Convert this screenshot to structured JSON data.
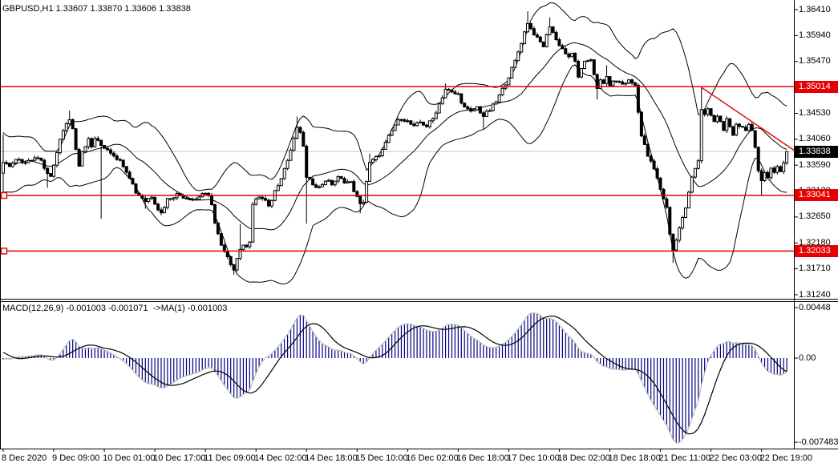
{
  "window": {
    "title": "GBPUSD,H1 1.33607 1.33870 1.33606 1.33838"
  },
  "chart_data": {
    "type": "candlestick",
    "symbol": "GBPUSD",
    "timeframe": "H1",
    "quote": {
      "open": "1.33607",
      "high": "1.33870",
      "low": "1.33606",
      "close": "1.33838"
    },
    "current_price": 1.33838,
    "current_price_label": "1.33838",
    "ylim": [
      1.3124,
      1.3641
    ],
    "price_axis_labels": [
      {
        "text": "1.36410",
        "value": 1.3641
      },
      {
        "text": "1.35940",
        "value": 1.3594
      },
      {
        "text": "1.35470",
        "value": 1.3547
      },
      {
        "text": "1.34530",
        "value": 1.3453
      },
      {
        "text": "1.34060",
        "value": 1.3406
      },
      {
        "text": "1.33590",
        "value": 1.3359
      },
      {
        "text": "1.33120",
        "value": 1.3312
      },
      {
        "text": "1.32650",
        "value": 1.3265
      },
      {
        "text": "1.32180",
        "value": 1.3218
      },
      {
        "text": "1.31710",
        "value": 1.3171
      },
      {
        "text": "1.31240",
        "value": 1.3124
      }
    ],
    "time_axis": {
      "bars_per_label": 16,
      "labels": [
        "8 Dec 2020",
        "9 Dec 09:00",
        "10 Dec 01:00",
        "10 Dec 17:00",
        "11 Dec 09:00",
        "14 Dec 02:00",
        "14 Dec 18:00",
        "15 Dec 10:00",
        "16 Dec 02:00",
        "16 Dec 18:00",
        "17 Dec 10:00",
        "18 Dec 02:00",
        "18 Dec 18:00",
        "21 Dec 11:00",
        "22 Dec 03:00",
        "22 Dec 19:00"
      ]
    },
    "bars_total": 249,
    "close_keyframes": [
      [
        0,
        1.3365
      ],
      [
        2,
        1.336
      ],
      [
        4,
        1.337
      ],
      [
        6,
        1.3362
      ],
      [
        8,
        1.3368
      ],
      [
        10,
        1.3372
      ],
      [
        12,
        1.3365
      ],
      [
        14,
        1.3342
      ],
      [
        15,
        1.3338
      ],
      [
        16,
        1.3356
      ],
      [
        18,
        1.3408
      ],
      [
        20,
        1.3432
      ],
      [
        21,
        1.3443
      ],
      [
        22,
        1.3425
      ],
      [
        23,
        1.339
      ],
      [
        24,
        1.336
      ],
      [
        25,
        1.3385
      ],
      [
        27,
        1.3405
      ],
      [
        28,
        1.3392
      ],
      [
        29,
        1.3408
      ],
      [
        31,
        1.3395
      ],
      [
        33,
        1.3388
      ],
      [
        35,
        1.3378
      ],
      [
        38,
        1.336
      ],
      [
        40,
        1.3338
      ],
      [
        42,
        1.331
      ],
      [
        44,
        1.33
      ],
      [
        45,
        1.3294
      ],
      [
        47,
        1.3303
      ],
      [
        49,
        1.328
      ],
      [
        50,
        1.3272
      ],
      [
        52,
        1.3297
      ],
      [
        55,
        1.3306
      ],
      [
        58,
        1.33
      ],
      [
        61,
        1.3297
      ],
      [
        63,
        1.3308
      ],
      [
        65,
        1.3302
      ],
      [
        66,
        1.329
      ],
      [
        67,
        1.3254
      ],
      [
        69,
        1.3212
      ],
      [
        71,
        1.319
      ],
      [
        73,
        1.3172
      ],
      [
        74,
        1.319
      ],
      [
        75,
        1.3208
      ],
      [
        77,
        1.3214
      ],
      [
        78,
        1.3222
      ],
      [
        79,
        1.3288
      ],
      [
        81,
        1.3302
      ],
      [
        83,
        1.3294
      ],
      [
        84,
        1.3282
      ],
      [
        86,
        1.3312
      ],
      [
        88,
        1.3338
      ],
      [
        90,
        1.3368
      ],
      [
        92,
        1.3405
      ],
      [
        93,
        1.3428
      ],
      [
        94,
        1.3415
      ],
      [
        95,
        1.3395
      ],
      [
        96,
        1.3335
      ],
      [
        98,
        1.3326
      ],
      [
        100,
        1.3318
      ],
      [
        102,
        1.3332
      ],
      [
        104,
        1.3325
      ],
      [
        106,
        1.3336
      ],
      [
        108,
        1.333
      ],
      [
        110,
        1.3327
      ],
      [
        112,
        1.33
      ],
      [
        113,
        1.3287
      ],
      [
        114,
        1.3294
      ],
      [
        115,
        1.333
      ],
      [
        116,
        1.3362
      ],
      [
        118,
        1.3372
      ],
      [
        120,
        1.3386
      ],
      [
        122,
        1.341
      ],
      [
        124,
        1.3432
      ],
      [
        126,
        1.3445
      ],
      [
        128,
        1.3438
      ],
      [
        130,
        1.3428
      ],
      [
        132,
        1.3437
      ],
      [
        134,
        1.343
      ],
      [
        136,
        1.3443
      ],
      [
        138,
        1.347
      ],
      [
        140,
        1.3497
      ],
      [
        142,
        1.349
      ],
      [
        144,
        1.3487
      ],
      [
        146,
        1.3463
      ],
      [
        148,
        1.3455
      ],
      [
        150,
        1.3464
      ],
      [
        152,
        1.3448
      ],
      [
        154,
        1.3459
      ],
      [
        156,
        1.3474
      ],
      [
        158,
        1.3496
      ],
      [
        160,
        1.352
      ],
      [
        162,
        1.3547
      ],
      [
        164,
        1.3582
      ],
      [
        166,
        1.3618
      ],
      [
        167,
        1.3606
      ],
      [
        168,
        1.3598
      ],
      [
        169,
        1.3588
      ],
      [
        171,
        1.3575
      ],
      [
        173,
        1.3612
      ],
      [
        174,
        1.36
      ],
      [
        175,
        1.3586
      ],
      [
        177,
        1.357
      ],
      [
        179,
        1.3553
      ],
      [
        180,
        1.3561
      ],
      [
        181,
        1.3549
      ],
      [
        182,
        1.3516
      ],
      [
        183,
        1.3531
      ],
      [
        184,
        1.3548
      ],
      [
        186,
        1.3552
      ],
      [
        187,
        1.3521
      ],
      [
        188,
        1.3496
      ],
      [
        189,
        1.3513
      ],
      [
        190,
        1.3509
      ],
      [
        191,
        1.3516
      ],
      [
        192,
        1.3506
      ],
      [
        194,
        1.3512
      ],
      [
        196,
        1.3506
      ],
      [
        198,
        1.3512
      ],
      [
        200,
        1.3504
      ],
      [
        202,
        1.3412
      ],
      [
        204,
        1.3376
      ],
      [
        206,
        1.3352
      ],
      [
        208,
        1.3316
      ],
      [
        210,
        1.3282
      ],
      [
        211,
        1.3236
      ],
      [
        212,
        1.3206
      ],
      [
        213,
        1.3222
      ],
      [
        214,
        1.3246
      ],
      [
        216,
        1.328
      ],
      [
        218,
        1.334
      ],
      [
        220,
        1.3368
      ],
      [
        221,
        1.3458
      ],
      [
        222,
        1.3448
      ],
      [
        223,
        1.3461
      ],
      [
        225,
        1.3436
      ],
      [
        226,
        1.3449
      ],
      [
        228,
        1.3425
      ],
      [
        229,
        1.344
      ],
      [
        231,
        1.3411
      ],
      [
        232,
        1.3434
      ],
      [
        234,
        1.3429
      ],
      [
        235,
        1.3421
      ],
      [
        236,
        1.3436
      ],
      [
        237,
        1.3421
      ],
      [
        238,
        1.3388
      ],
      [
        239,
        1.3346
      ],
      [
        240,
        1.3331
      ],
      [
        241,
        1.3349
      ],
      [
        242,
        1.3338
      ],
      [
        243,
        1.3353
      ],
      [
        244,
        1.3345
      ],
      [
        245,
        1.3357
      ],
      [
        246,
        1.3349
      ],
      [
        247,
        1.3363
      ],
      [
        248,
        1.3384
      ]
    ],
    "wick_overrides": [
      {
        "i": 0,
        "high": 1.3415,
        "low": 1.3298
      },
      {
        "i": 14,
        "low": 1.3318
      },
      {
        "i": 21,
        "high": 1.3458
      },
      {
        "i": 31,
        "low": 1.3262
      },
      {
        "i": 45,
        "low": 1.328
      },
      {
        "i": 50,
        "low": 1.3268
      },
      {
        "i": 73,
        "low": 1.316
      },
      {
        "i": 75,
        "high": 1.3252
      },
      {
        "i": 93,
        "high": 1.3447
      },
      {
        "i": 96,
        "low": 1.3253
      },
      {
        "i": 113,
        "low": 1.3272
      },
      {
        "i": 116,
        "high": 1.338
      },
      {
        "i": 140,
        "high": 1.3507
      },
      {
        "i": 152,
        "low": 1.3424
      },
      {
        "i": 166,
        "high": 1.3638
      },
      {
        "i": 173,
        "high": 1.3627
      },
      {
        "i": 188,
        "low": 1.3478
      },
      {
        "i": 191,
        "high": 1.354
      },
      {
        "i": 212,
        "low": 1.3182
      },
      {
        "i": 221,
        "high": 1.35,
        "low": 1.3362
      },
      {
        "i": 240,
        "low": 1.3303
      }
    ],
    "noise": {
      "body": 0.00035,
      "wick": 0.00045
    },
    "indicators": {
      "bollinger": {
        "period": 20,
        "deviation": 2
      },
      "macd": {
        "label": "MACD(12,26,9) -0.001003 -0.001071  ->MA(1) -0.001003",
        "fast": 12,
        "slow": 26,
        "signal": 9,
        "values_shown": [
          "-0.001003",
          "-0.001071",
          "-0.001003"
        ],
        "axis_labels": [
          {
            "text": "0.00448",
            "value": 0.00448
          },
          {
            "text": "0.00",
            "value": 0
          },
          {
            "text": "-0.007483",
            "value": -0.007483
          }
        ]
      }
    },
    "levels": [
      {
        "label": "1.35014",
        "price": 1.35014,
        "handle": false
      },
      {
        "label": "1.33041",
        "price": 1.33041,
        "handle": true
      },
      {
        "label": "1.32033",
        "price": 1.32033,
        "handle": true
      }
    ],
    "trendline": {
      "bar1": 221,
      "price1": 1.35,
      "bar2": 250.8,
      "price2": 1.3384
    },
    "colors": {
      "background": "#FFFFFF",
      "candle_up": "#FFFFFF",
      "candle_down": "#000000",
      "candle_outline": "#000000",
      "bollinger": "#000000",
      "level_line": "#E60000",
      "trend_line": "#E60000",
      "current_price_line": "#C4C4C4",
      "macd_histogram": "#000080",
      "macd_envelope": "#BDBDBD",
      "macd_signal": "#000000",
      "badge_level_bg": "#E60000",
      "badge_current_bg": "#000000",
      "badge_text": "#FFFFFF",
      "axis_text": "#000000"
    }
  }
}
